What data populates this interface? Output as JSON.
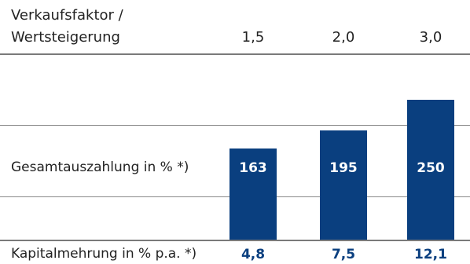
{
  "chart_data": {
    "type": "bar",
    "header_label_line1": "Verkaufsfaktor /",
    "header_label_line2": "Wertsteigerung",
    "categories": [
      "1,5",
      "2,0",
      "3,0"
    ],
    "series": [
      {
        "name": "Gesamtauszahlung in % *)",
        "values": [
          163,
          195,
          250
        ]
      }
    ],
    "value_labels": [
      "163",
      "195",
      "250"
    ],
    "secondary_row": {
      "label": "Kapitalmehrung in % p.a. *)",
      "values": [
        "4,8",
        "7,5",
        "12,1"
      ]
    },
    "ylim": [
      0,
      260
    ],
    "bar_color": "#0a3f7f"
  }
}
